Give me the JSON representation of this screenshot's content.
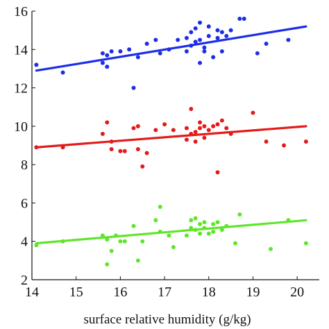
{
  "chart_data": {
    "type": "scatter",
    "title": "",
    "xlabel": "surface relative humidity (g/kg)",
    "ylabel": "",
    "xlim": [
      14,
      20.5
    ],
    "ylim": [
      2,
      16
    ],
    "xticks": [
      14,
      15,
      16,
      17,
      18,
      19,
      20
    ],
    "yticks": [
      2,
      4,
      6,
      8,
      10,
      12,
      14,
      16
    ],
    "grid": false,
    "legend": "none",
    "series": [
      {
        "color": "#1d2ee8",
        "trend": [
          [
            14.1,
            12.9
          ],
          [
            20.2,
            15.2
          ]
        ],
        "points": [
          [
            14.1,
            13.2
          ],
          [
            14.7,
            12.8
          ],
          [
            15.6,
            13.8
          ],
          [
            15.6,
            13.3
          ],
          [
            15.7,
            13.1
          ],
          [
            15.7,
            13.7
          ],
          [
            15.8,
            13.9
          ],
          [
            16.0,
            13.9
          ],
          [
            16.2,
            14.0
          ],
          [
            16.3,
            12.0
          ],
          [
            16.4,
            13.6
          ],
          [
            16.6,
            14.3
          ],
          [
            16.8,
            14.5
          ],
          [
            16.9,
            13.8
          ],
          [
            17.1,
            14.0
          ],
          [
            17.3,
            14.5
          ],
          [
            17.5,
            13.9
          ],
          [
            17.5,
            14.6
          ],
          [
            17.6,
            14.2
          ],
          [
            17.6,
            14.9
          ],
          [
            17.7,
            15.1
          ],
          [
            17.7,
            14.4
          ],
          [
            17.8,
            13.3
          ],
          [
            17.8,
            14.5
          ],
          [
            17.8,
            15.4
          ],
          [
            17.9,
            13.9
          ],
          [
            17.9,
            14.1
          ],
          [
            18.0,
            14.7
          ],
          [
            18.0,
            15.2
          ],
          [
            18.1,
            13.6
          ],
          [
            18.2,
            14.6
          ],
          [
            18.2,
            15.0
          ],
          [
            18.3,
            14.9
          ],
          [
            18.3,
            13.9
          ],
          [
            18.4,
            14.7
          ],
          [
            18.5,
            15.0
          ],
          [
            18.7,
            15.6
          ],
          [
            18.8,
            15.6
          ],
          [
            19.1,
            13.8
          ],
          [
            19.3,
            14.3
          ],
          [
            19.8,
            14.5
          ]
        ]
      },
      {
        "color": "#e31b1b",
        "trend": [
          [
            14.1,
            8.9
          ],
          [
            20.2,
            10.0
          ]
        ],
        "points": [
          [
            14.1,
            8.9
          ],
          [
            14.7,
            8.9
          ],
          [
            15.6,
            9.6
          ],
          [
            15.7,
            10.2
          ],
          [
            15.8,
            8.8
          ],
          [
            15.8,
            9.2
          ],
          [
            16.0,
            8.7
          ],
          [
            16.1,
            8.7
          ],
          [
            16.3,
            9.9
          ],
          [
            16.4,
            8.8
          ],
          [
            16.4,
            10.0
          ],
          [
            16.5,
            7.9
          ],
          [
            16.6,
            8.6
          ],
          [
            16.8,
            9.8
          ],
          [
            17.0,
            10.1
          ],
          [
            17.2,
            9.8
          ],
          [
            17.5,
            9.3
          ],
          [
            17.5,
            9.9
          ],
          [
            17.6,
            9.6
          ],
          [
            17.6,
            10.9
          ],
          [
            17.7,
            9.2
          ],
          [
            17.7,
            9.7
          ],
          [
            17.8,
            9.9
          ],
          [
            17.8,
            10.2
          ],
          [
            17.9,
            9.4
          ],
          [
            17.9,
            10.0
          ],
          [
            18.0,
            9.8
          ],
          [
            18.1,
            10.0
          ],
          [
            18.2,
            7.6
          ],
          [
            18.2,
            10.1
          ],
          [
            18.3,
            10.3
          ],
          [
            18.4,
            9.9
          ],
          [
            18.5,
            9.6
          ],
          [
            19.0,
            10.7
          ],
          [
            19.3,
            9.2
          ],
          [
            19.7,
            9.0
          ],
          [
            20.2,
            9.2
          ]
        ]
      },
      {
        "color": "#5ee62a",
        "trend": [
          [
            14.1,
            3.9
          ],
          [
            20.2,
            5.1
          ]
        ],
        "points": [
          [
            14.1,
            3.8
          ],
          [
            14.7,
            4.0
          ],
          [
            15.6,
            4.3
          ],
          [
            15.7,
            2.8
          ],
          [
            15.7,
            4.1
          ],
          [
            15.8,
            3.5
          ],
          [
            15.9,
            4.3
          ],
          [
            16.0,
            4.0
          ],
          [
            16.1,
            4.0
          ],
          [
            16.3,
            4.8
          ],
          [
            16.4,
            3.0
          ],
          [
            16.5,
            4.0
          ],
          [
            16.8,
            5.1
          ],
          [
            16.9,
            5.8
          ],
          [
            16.9,
            4.5
          ],
          [
            17.1,
            4.3
          ],
          [
            17.2,
            3.7
          ],
          [
            17.5,
            4.3
          ],
          [
            17.6,
            4.7
          ],
          [
            17.6,
            5.1
          ],
          [
            17.7,
            4.6
          ],
          [
            17.7,
            5.2
          ],
          [
            17.8,
            4.9
          ],
          [
            17.8,
            4.4
          ],
          [
            17.9,
            5.0
          ],
          [
            17.9,
            4.7
          ],
          [
            18.0,
            4.4
          ],
          [
            18.1,
            4.9
          ],
          [
            18.1,
            4.5
          ],
          [
            18.2,
            5.0
          ],
          [
            18.3,
            4.6
          ],
          [
            18.4,
            4.8
          ],
          [
            18.6,
            3.9
          ],
          [
            18.7,
            5.4
          ],
          [
            19.4,
            3.6
          ],
          [
            19.8,
            5.1
          ],
          [
            20.2,
            3.9
          ]
        ]
      }
    ]
  }
}
